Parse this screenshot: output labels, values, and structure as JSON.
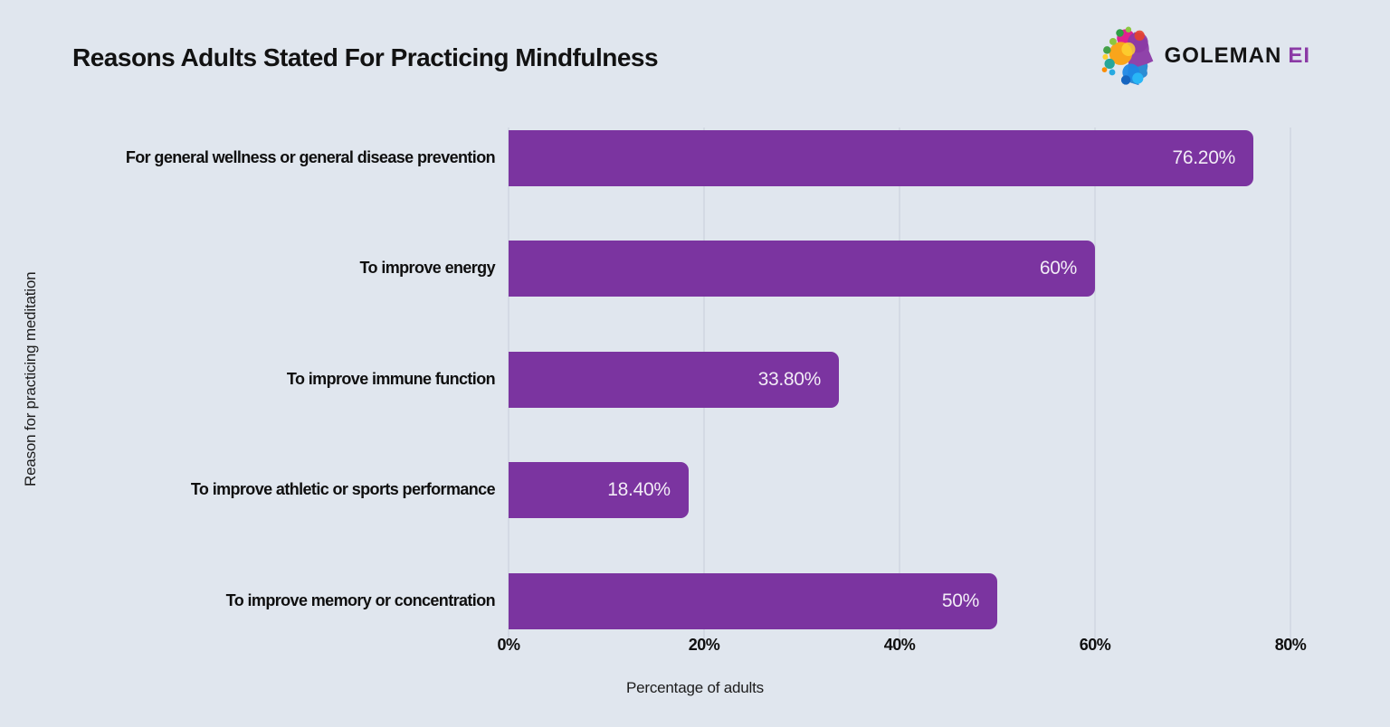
{
  "page": {
    "background_color": "#e0e6ee"
  },
  "header": {
    "title": "Reasons Adults Stated For Practicing Mindfulness"
  },
  "logo": {
    "brand": "GOLEMAN",
    "suffix": "EI",
    "brand_color": "#141414",
    "suffix_color": "#8b3aa5",
    "icon": "dot-cluster-head-profile"
  },
  "chart_data": {
    "type": "bar",
    "orientation": "horizontal",
    "title": "Reasons Adults Stated For Practicing Mindfulness",
    "categories": [
      "For general wellness or general disease prevention",
      "To improve energy",
      "To improve immune function",
      "To improve athletic or sports performance",
      "To improve memory or concentration"
    ],
    "values": [
      76.2,
      60,
      33.8,
      18.4,
      50
    ],
    "value_labels": [
      "76.20%",
      "60%",
      "33.80%",
      "18.40%",
      "50%"
    ],
    "xlabel": "Percentage of adults",
    "ylabel": "Reason for practicing meditation",
    "xlim": [
      0,
      80
    ],
    "x_ticks": [
      "0%",
      "20%",
      "40%",
      "60%",
      "80%"
    ],
    "bar_color": "#7b34a0",
    "value_label_color": "#f2ecf6",
    "gridline_color": "#c9cfda",
    "grid": "vertical",
    "legend": "none"
  }
}
